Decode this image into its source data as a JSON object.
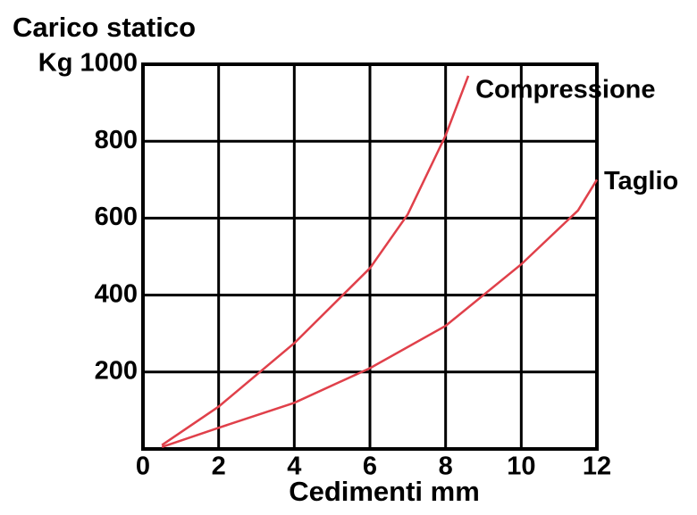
{
  "chart_data": {
    "type": "line",
    "title": "Carico statico",
    "x_label": "Cedimenti mm",
    "xlim": [
      0,
      12
    ],
    "xticks": [
      0,
      2,
      4,
      6,
      8,
      10,
      12
    ],
    "ylim": [
      0,
      1000
    ],
    "yticks": [
      200,
      400,
      600,
      800,
      {
        "value": 1000,
        "label": "Kg 1000"
      }
    ],
    "grid": true,
    "series": [
      {
        "name": "Compressione",
        "color": "#e0404a",
        "x": [
          0.5,
          2,
          4,
          6,
          7,
          8,
          8.6
        ],
        "values": [
          10,
          110,
          275,
          470,
          610,
          815,
          970
        ]
      },
      {
        "name": "Taglio",
        "color": "#e0404a",
        "x": [
          0.5,
          2,
          4,
          6,
          8,
          10,
          11.5,
          12
        ],
        "values": [
          5,
          55,
          120,
          210,
          320,
          480,
          620,
          700
        ]
      }
    ]
  }
}
